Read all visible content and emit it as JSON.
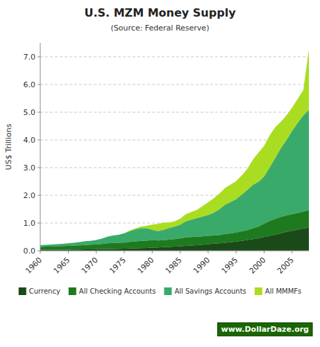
{
  "chart_data": {
    "type": "area",
    "stacked": true,
    "title": "U.S. MZM Money Supply",
    "subtitle": "(Source: Federal Reserve)",
    "y_label": "US$ Trillions",
    "annotations": [
      "www.DollarDaze.org"
    ],
    "x": [
      1960,
      1961,
      1962,
      1963,
      1964,
      1965,
      1966,
      1967,
      1968,
      1969,
      1970,
      1971,
      1972,
      1973,
      1974,
      1975,
      1976,
      1977,
      1978,
      1979,
      1980,
      1981,
      1982,
      1983,
      1984,
      1985,
      1986,
      1987,
      1988,
      1989,
      1990,
      1991,
      1992,
      1993,
      1994,
      1995,
      1996,
      1997,
      1998,
      1999,
      2000,
      2001,
      2002,
      2003,
      2004,
      2005,
      2006,
      2007,
      2008
    ],
    "series": [
      {
        "name": "Currency",
        "color": "#1a4a1a",
        "values": [
          0.03,
          0.032,
          0.033,
          0.035,
          0.037,
          0.039,
          0.042,
          0.044,
          0.047,
          0.05,
          0.054,
          0.057,
          0.061,
          0.065,
          0.07,
          0.075,
          0.081,
          0.087,
          0.094,
          0.101,
          0.115,
          0.121,
          0.13,
          0.138,
          0.148,
          0.16,
          0.175,
          0.187,
          0.203,
          0.22,
          0.24,
          0.255,
          0.27,
          0.285,
          0.305,
          0.33,
          0.358,
          0.385,
          0.42,
          0.45,
          0.495,
          0.535,
          0.58,
          0.63,
          0.68,
          0.72,
          0.76,
          0.8,
          0.84
        ]
      },
      {
        "name": "All Checking Accounts",
        "color": "#1e7a1e",
        "values": [
          0.11,
          0.115,
          0.12,
          0.125,
          0.13,
          0.138,
          0.143,
          0.15,
          0.162,
          0.166,
          0.17,
          0.185,
          0.205,
          0.215,
          0.215,
          0.218,
          0.235,
          0.248,
          0.262,
          0.264,
          0.27,
          0.245,
          0.25,
          0.265,
          0.27,
          0.285,
          0.305,
          0.307,
          0.305,
          0.3,
          0.3,
          0.295,
          0.295,
          0.32,
          0.32,
          0.325,
          0.34,
          0.36,
          0.385,
          0.425,
          0.48,
          0.54,
          0.57,
          0.59,
          0.595,
          0.6,
          0.6,
          0.61,
          0.62
        ]
      },
      {
        "name": "All Savings Accounts",
        "color": "#3aaa6a",
        "values": [
          0.06,
          0.064,
          0.069,
          0.075,
          0.083,
          0.094,
          0.105,
          0.118,
          0.133,
          0.14,
          0.162,
          0.196,
          0.238,
          0.272,
          0.29,
          0.335,
          0.388,
          0.432,
          0.458,
          0.446,
          0.37,
          0.342,
          0.37,
          0.418,
          0.448,
          0.492,
          0.576,
          0.622,
          0.67,
          0.71,
          0.75,
          0.82,
          0.93,
          1.05,
          1.13,
          1.2,
          1.32,
          1.45,
          1.57,
          1.61,
          1.7,
          1.93,
          2.2,
          2.48,
          2.72,
          3.0,
          3.25,
          3.47,
          3.62
        ]
      },
      {
        "name": "All MMMFs",
        "color": "#aadd22",
        "values": [
          0.0,
          0.0,
          0.0,
          0.0,
          0.0,
          0.0,
          0.0,
          0.0,
          0.0,
          0.0,
          0.0,
          0.0,
          0.0,
          0.0,
          0.0,
          0.01,
          0.03,
          0.04,
          0.06,
          0.09,
          0.19,
          0.26,
          0.26,
          0.195,
          0.195,
          0.22,
          0.26,
          0.285,
          0.295,
          0.38,
          0.46,
          0.525,
          0.57,
          0.605,
          0.63,
          0.66,
          0.7,
          0.76,
          0.92,
          1.06,
          1.11,
          1.165,
          1.11,
          0.955,
          0.89,
          0.85,
          0.87,
          0.92,
          2.2
        ]
      }
    ],
    "xlim": [
      1960,
      2008
    ],
    "ylim": [
      0,
      7.5
    ],
    "xticks": [
      1960,
      1965,
      1970,
      1975,
      1980,
      1985,
      1990,
      1995,
      2000,
      2005
    ],
    "yticks": [
      {
        "value": 0.0,
        "label": "0.0"
      },
      {
        "value": 1.0,
        "label": "1.0"
      },
      {
        "value": 2.0,
        "label": "2.0"
      },
      {
        "value": 3.0,
        "label": "3.0"
      },
      {
        "value": 4.0,
        "label": "4.0"
      },
      {
        "value": 5.0,
        "label": "5.0"
      },
      {
        "value": 6.0,
        "label": "6.0"
      },
      {
        "value": 7.0,
        "label": "7.0"
      }
    ],
    "grid": true,
    "legend": "bottom"
  }
}
